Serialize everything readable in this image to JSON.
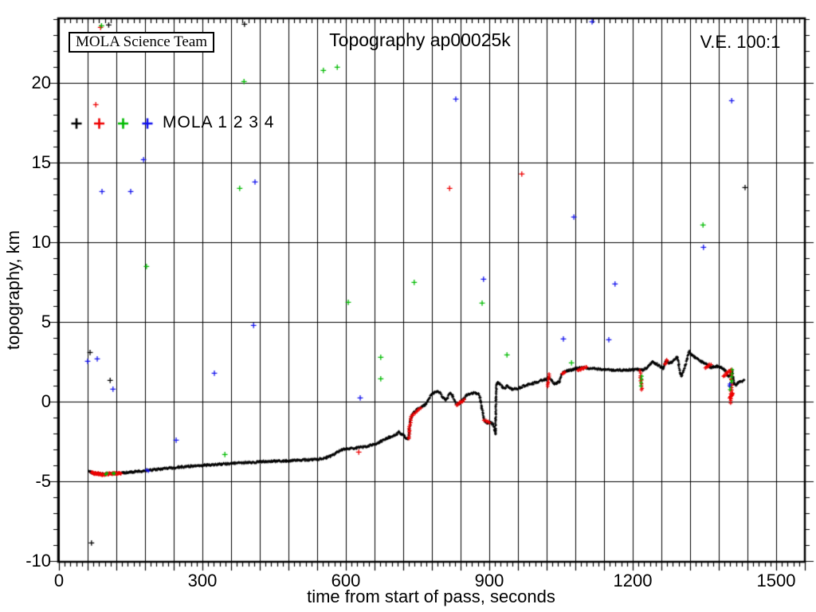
{
  "header": {
    "title": "Topography ap00025k",
    "ve_label": "V.E. 100:1",
    "team_box": "MOLA Science Team"
  },
  "legend": {
    "text": "MOLA 1 2 3 4",
    "marker_colors": [
      "#000000",
      "#ee0000",
      "#00bb00",
      "#1111ee"
    ]
  },
  "axes": {
    "xlabel": "time from start of pass, seconds",
    "ylabel": "topography, km"
  },
  "chart_data": {
    "type": "scatter",
    "title": "Topography ap00025k",
    "xlabel": "time from start of pass, seconds",
    "ylabel": "topography, km",
    "xlim": [
      -1.7,
      1560
    ],
    "ylim": [
      -10.03,
      24.07
    ],
    "xticks": [
      0,
      300,
      600,
      900,
      1200,
      1500
    ],
    "yticks": [
      -10,
      -5,
      0,
      5,
      10,
      15,
      20
    ],
    "x_grid_step": 60,
    "y_grid_step": 5,
    "x_minor_tick_step": 12,
    "y_minor_tick_step": 1,
    "grid": true,
    "legend_position": "upper-left-inside",
    "colors": {
      "black": "#000000",
      "red": "#ee0000",
      "green": "#00bb00",
      "blue": "#1111ee"
    },
    "series": [
      {
        "name": "MOLA 1",
        "color": "black",
        "marker": "+"
      },
      {
        "name": "MOLA 2",
        "color": "red",
        "marker": "+"
      },
      {
        "name": "MOLA 3",
        "color": "green",
        "marker": "+"
      },
      {
        "name": "MOLA 4",
        "color": "blue",
        "marker": "+"
      }
    ],
    "profile_color": "black",
    "profile": [
      [
        62,
        -4.3
      ],
      [
        66,
        -4.4
      ],
      [
        72,
        -4.47
      ],
      [
        80,
        -4.5
      ],
      [
        95,
        -4.52
      ],
      [
        110,
        -4.5
      ],
      [
        125,
        -4.48
      ],
      [
        135,
        -4.45
      ],
      [
        150,
        -4.4
      ],
      [
        165,
        -4.35
      ],
      [
        185,
        -4.3
      ],
      [
        215,
        -4.2
      ],
      [
        250,
        -4.1
      ],
      [
        280,
        -4.02
      ],
      [
        310,
        -3.97
      ],
      [
        340,
        -3.9
      ],
      [
        365,
        -3.85
      ],
      [
        395,
        -3.8
      ],
      [
        420,
        -3.75
      ],
      [
        450,
        -3.72
      ],
      [
        475,
        -3.7
      ],
      [
        505,
        -3.65
      ],
      [
        540,
        -3.6
      ],
      [
        558,
        -3.5
      ],
      [
        572,
        -3.35
      ],
      [
        585,
        -3.1
      ],
      [
        597,
        -2.95
      ],
      [
        608,
        -2.92
      ],
      [
        622,
        -2.88
      ],
      [
        640,
        -2.82
      ],
      [
        658,
        -2.68
      ],
      [
        668,
        -2.55
      ],
      [
        675,
        -2.45
      ],
      [
        685,
        -2.3
      ],
      [
        692,
        -2.2
      ],
      [
        700,
        -2.12
      ],
      [
        706,
        -2.02
      ],
      [
        711,
        -1.88
      ],
      [
        716,
        -2.0
      ],
      [
        722,
        -2.12
      ],
      [
        727,
        -2.28
      ],
      [
        731,
        -2.3
      ],
      [
        733,
        -1.7
      ],
      [
        735,
        -1.15
      ],
      [
        738,
        -0.85
      ],
      [
        742,
        -0.65
      ],
      [
        747,
        -0.52
      ],
      [
        753,
        -0.42
      ],
      [
        758,
        -0.3
      ],
      [
        764,
        -0.2
      ],
      [
        768,
        -0.1
      ],
      [
        773,
        0.15
      ],
      [
        778,
        0.45
      ],
      [
        785,
        0.6
      ],
      [
        791,
        0.7
      ],
      [
        797,
        0.55
      ],
      [
        803,
        0.3
      ],
      [
        808,
        0.1
      ],
      [
        813,
        0.28
      ],
      [
        819,
        0.58
      ],
      [
        823,
        0.42
      ],
      [
        827,
        0.15
      ],
      [
        832,
        -0.15
      ],
      [
        837,
        -0.1
      ],
      [
        842,
        0.05
      ],
      [
        847,
        0.2
      ],
      [
        852,
        0.42
      ],
      [
        858,
        0.52
      ],
      [
        866,
        0.55
      ],
      [
        873,
        0.55
      ],
      [
        878,
        0.48
      ],
      [
        881,
        0.25
      ],
      [
        884,
        -0.3
      ],
      [
        888,
        -0.95
      ],
      [
        892,
        -1.25
      ],
      [
        897,
        -1.3
      ],
      [
        903,
        -1.28
      ],
      [
        908,
        -1.4
      ],
      [
        911,
        -1.75
      ],
      [
        913,
        -2.0
      ],
      [
        914,
        0.3
      ],
      [
        915,
        1.1
      ],
      [
        918,
        1.25
      ],
      [
        922,
        1.15
      ],
      [
        927,
        0.95
      ],
      [
        932,
        0.82
      ],
      [
        937,
        1.0
      ],
      [
        942,
        0.9
      ],
      [
        948,
        0.8
      ],
      [
        956,
        0.82
      ],
      [
        964,
        0.9
      ],
      [
        972,
        1.0
      ],
      [
        980,
        1.08
      ],
      [
        990,
        1.15
      ],
      [
        1000,
        1.25
      ],
      [
        1010,
        1.35
      ],
      [
        1018,
        1.42
      ],
      [
        1025,
        1.5
      ],
      [
        1030,
        1.35
      ],
      [
        1036,
        1.15
      ],
      [
        1042,
        1.2
      ],
      [
        1047,
        1.3
      ],
      [
        1051,
        1.7
      ],
      [
        1055,
        1.88
      ],
      [
        1062,
        1.95
      ],
      [
        1072,
        2.02
      ],
      [
        1082,
        2.1
      ],
      [
        1092,
        2.15
      ],
      [
        1105,
        2.12
      ],
      [
        1120,
        2.08
      ],
      [
        1140,
        2.05
      ],
      [
        1160,
        2.0
      ],
      [
        1180,
        2.0
      ],
      [
        1198,
        2.02
      ],
      [
        1208,
        2.05
      ],
      [
        1215,
        2.0
      ],
      [
        1222,
        2.0
      ],
      [
        1230,
        2.15
      ],
      [
        1237,
        2.38
      ],
      [
        1241,
        2.5
      ],
      [
        1247,
        2.42
      ],
      [
        1254,
        2.3
      ],
      [
        1260,
        2.18
      ],
      [
        1264,
        2.1
      ],
      [
        1268,
        2.45
      ],
      [
        1271,
        2.6
      ],
      [
        1276,
        2.42
      ],
      [
        1282,
        2.5
      ],
      [
        1287,
        2.65
      ],
      [
        1293,
        2.85
      ],
      [
        1296,
        2.4
      ],
      [
        1299,
        1.8
      ],
      [
        1302,
        1.65
      ],
      [
        1306,
        1.9
      ],
      [
        1310,
        2.3
      ],
      [
        1314,
        2.7
      ],
      [
        1318,
        3.15
      ],
      [
        1322,
        3.0
      ],
      [
        1328,
        2.85
      ],
      [
        1335,
        2.7
      ],
      [
        1343,
        2.55
      ],
      [
        1350,
        2.45
      ],
      [
        1357,
        2.3
      ],
      [
        1363,
        2.18
      ],
      [
        1370,
        2.2
      ],
      [
        1377,
        2.25
      ],
      [
        1383,
        2.2
      ],
      [
        1389,
        2.1
      ],
      [
        1394,
        1.95
      ],
      [
        1399,
        1.65
      ],
      [
        1402,
        1.58
      ],
      [
        1405,
        1.8
      ],
      [
        1408,
        1.95
      ],
      [
        1410,
        1.5
      ],
      [
        1412,
        1.15
      ],
      [
        1416,
        1.05
      ],
      [
        1420,
        1.2
      ],
      [
        1426,
        1.3
      ],
      [
        1433,
        1.35
      ]
    ],
    "overlay_runs": [
      {
        "c": "red",
        "t0": 68,
        "v0": -4.45,
        "t1": 92,
        "v1": -4.55,
        "n": 26
      },
      {
        "c": "red",
        "t0": 92,
        "v0": -4.55,
        "t1": 130,
        "v1": -4.48,
        "n": 34
      },
      {
        "c": "green",
        "t0": 99,
        "v0": -4.5,
        "t1": 101,
        "v1": -4.5,
        "n": 2
      },
      {
        "c": "green",
        "t0": 114,
        "v0": -4.48,
        "t1": 116,
        "v1": -4.48,
        "n": 2
      },
      {
        "c": "blue",
        "t0": 184,
        "v0": -4.3,
        "t1": 188,
        "v1": -4.3,
        "n": 2
      },
      {
        "c": "red",
        "t0": 731,
        "v0": -2.3,
        "t1": 736,
        "v1": -0.9,
        "n": 12
      },
      {
        "c": "red",
        "t0": 739,
        "v0": -0.8,
        "t1": 756,
        "v1": -0.4,
        "n": 7
      },
      {
        "c": "red",
        "t0": 832,
        "v0": -0.18,
        "t1": 847,
        "v1": 0.12,
        "n": 9
      },
      {
        "c": "red",
        "t0": 890,
        "v0": -1.15,
        "t1": 899,
        "v1": -1.3,
        "n": 5
      },
      {
        "c": "red",
        "t0": 1021,
        "v0": 0.95,
        "t1": 1026,
        "v1": 1.72,
        "n": 8
      },
      {
        "c": "red",
        "t0": 1053,
        "v0": 1.78,
        "t1": 1059,
        "v1": 1.9,
        "n": 4
      },
      {
        "c": "red",
        "t0": 1086,
        "v0": 2.0,
        "t1": 1103,
        "v1": 2.18,
        "n": 11
      },
      {
        "c": "red",
        "t0": 1216,
        "v0": 1.95,
        "t1": 1219,
        "v1": 0.75,
        "n": 10
      },
      {
        "c": "green",
        "t0": 1217,
        "v0": 1.05,
        "t1": 1220,
        "v1": 1.6,
        "n": 4
      },
      {
        "c": "red",
        "t0": 1267,
        "v0": 2.35,
        "t1": 1272,
        "v1": 2.62,
        "n": 4
      },
      {
        "c": "red",
        "t0": 1352,
        "v0": 2.1,
        "t1": 1363,
        "v1": 2.38,
        "n": 7
      },
      {
        "c": "red",
        "t0": 1390,
        "v0": 1.6,
        "t1": 1404,
        "v1": 2.0,
        "n": 10
      },
      {
        "c": "red",
        "t0": 1405,
        "v0": -0.05,
        "t1": 1407,
        "v1": 2.05,
        "n": 16
      },
      {
        "c": "red",
        "t0": 1403,
        "v0": 0.25,
        "t1": 1409,
        "v1": 0.55,
        "n": 10
      },
      {
        "c": "green",
        "t0": 1404,
        "v0": 0.8,
        "t1": 1408,
        "v1": 2.0,
        "n": 7
      },
      {
        "c": "blue",
        "t0": 1402,
        "v0": 1.05,
        "t1": 1404,
        "v1": 1.1,
        "n": 2
      }
    ],
    "outliers": [
      {
        "t": 65,
        "v": 3.1,
        "c": "black"
      },
      {
        "t": 107,
        "v": 1.35,
        "c": "black"
      },
      {
        "t": 68,
        "v": -8.85,
        "c": "black"
      },
      {
        "t": 388,
        "v": 23.7,
        "c": "black"
      },
      {
        "t": 104,
        "v": 23.65,
        "c": "black"
      },
      {
        "t": 1435,
        "v": 13.45,
        "c": "black"
      },
      {
        "t": 87,
        "v": 23.5,
        "c": "red"
      },
      {
        "t": 77,
        "v": 18.65,
        "c": "red"
      },
      {
        "t": 817,
        "v": 13.4,
        "c": "red"
      },
      {
        "t": 968,
        "v": 14.3,
        "c": "red"
      },
      {
        "t": 627,
        "v": -3.15,
        "c": "red"
      },
      {
        "t": 89,
        "v": 23.6,
        "c": "green"
      },
      {
        "t": 387,
        "v": 20.1,
        "c": "green"
      },
      {
        "t": 378,
        "v": 13.4,
        "c": "green"
      },
      {
        "t": 183,
        "v": 8.5,
        "c": "green"
      },
      {
        "t": 347,
        "v": -3.3,
        "c": "green"
      },
      {
        "t": 553,
        "v": 20.8,
        "c": "green"
      },
      {
        "t": 582,
        "v": 21.0,
        "c": "green"
      },
      {
        "t": 1347,
        "v": 11.1,
        "c": "green"
      },
      {
        "t": 743,
        "v": 7.5,
        "c": "green"
      },
      {
        "t": 605,
        "v": 6.25,
        "c": "green"
      },
      {
        "t": 885,
        "v": 6.2,
        "c": "green"
      },
      {
        "t": 673,
        "v": 2.8,
        "c": "green"
      },
      {
        "t": 937,
        "v": 2.95,
        "c": "green"
      },
      {
        "t": 673,
        "v": 1.45,
        "c": "green"
      },
      {
        "t": 1072,
        "v": 2.45,
        "c": "green"
      },
      {
        "t": 177,
        "v": 15.2,
        "c": "blue"
      },
      {
        "t": 90,
        "v": 13.2,
        "c": "blue"
      },
      {
        "t": 150,
        "v": 13.2,
        "c": "blue"
      },
      {
        "t": 410,
        "v": 13.8,
        "c": "blue"
      },
      {
        "t": 407,
        "v": 4.8,
        "c": "blue"
      },
      {
        "t": 80,
        "v": 2.7,
        "c": "blue"
      },
      {
        "t": 60,
        "v": 2.55,
        "c": "blue"
      },
      {
        "t": 113,
        "v": 0.8,
        "c": "blue"
      },
      {
        "t": 325,
        "v": 1.8,
        "c": "blue"
      },
      {
        "t": 245,
        "v": -2.4,
        "c": "blue"
      },
      {
        "t": 830,
        "v": 19.0,
        "c": "blue"
      },
      {
        "t": 1115,
        "v": 23.85,
        "c": "blue"
      },
      {
        "t": 1407,
        "v": 18.9,
        "c": "blue"
      },
      {
        "t": 1077,
        "v": 11.6,
        "c": "blue"
      },
      {
        "t": 1348,
        "v": 9.7,
        "c": "blue"
      },
      {
        "t": 888,
        "v": 7.7,
        "c": "blue"
      },
      {
        "t": 1055,
        "v": 3.95,
        "c": "blue"
      },
      {
        "t": 630,
        "v": 0.25,
        "c": "blue"
      },
      {
        "t": 1163,
        "v": 7.4,
        "c": "blue"
      },
      {
        "t": 1150,
        "v": 3.9,
        "c": "blue"
      }
    ]
  }
}
